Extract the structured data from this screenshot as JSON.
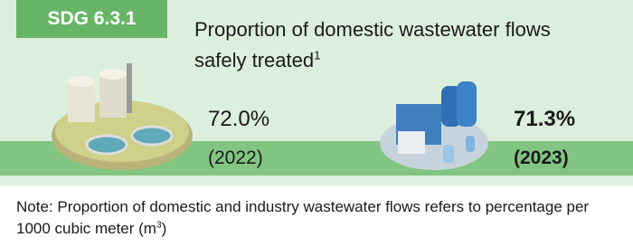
{
  "badge": "SDG 6.3.1",
  "title": {
    "text": "Proportion of domestic wastewater flows safely treated",
    "footnote": "1"
  },
  "stats": [
    {
      "value": "72.0%",
      "year": "(2022)"
    },
    {
      "value": "71.3%",
      "year": "(2023)"
    }
  ],
  "note": {
    "text": "Note: Proportion of domestic and industry wastewater flows refers to percentage per 1000 cubic meter (m",
    "superscript": "3",
    "closing": ")"
  }
}
